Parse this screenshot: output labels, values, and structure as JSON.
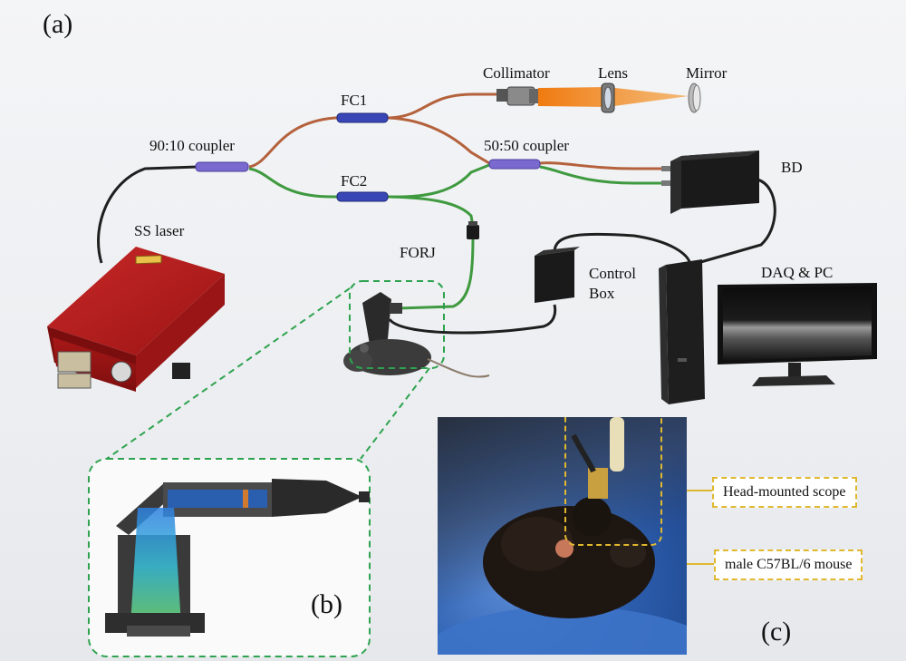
{
  "labels": {
    "panel_a": "(a)",
    "panel_b": "(b)",
    "panel_c": "(c)",
    "collimator": "Collimator",
    "lens": "Lens",
    "mirror": "Mirror",
    "fc1": "FC1",
    "fc2": "FC2",
    "coupler_90_10": "90:10 coupler",
    "coupler_50_50": "50:50 coupler",
    "bd": "BD",
    "ss_laser": "SS laser",
    "forj": "FORJ",
    "control_box_line1": "Control",
    "control_box_line2": "Box",
    "daq_pc": "DAQ & PC"
  },
  "callouts": {
    "scope": "Head-mounted scope",
    "mouse": "male C57BL/6 mouse"
  },
  "colors": {
    "fiber_red": "#b4613c",
    "fiber_green": "#3f9a3f",
    "fiber_black": "#1f1f1f",
    "coupler": "#7a6ad0",
    "fc": "#3946b5",
    "laser_body": "#b51e1e",
    "beam": "#f08a1c",
    "zoom_box": "#2ea34f",
    "callout_box": "#e0b830"
  },
  "icons": {
    "laser": "ss-laser-icon",
    "collimator": "collimator-icon",
    "lens": "lens-icon",
    "mirror": "mirror-icon",
    "detector": "balanced-detector-icon",
    "forj": "forj-icon",
    "control_box": "control-box-icon",
    "pc_tower": "pc-tower-icon",
    "monitor": "monitor-icon",
    "mouse": "mouse-icon",
    "probe": "head-mounted-scope-icon"
  }
}
